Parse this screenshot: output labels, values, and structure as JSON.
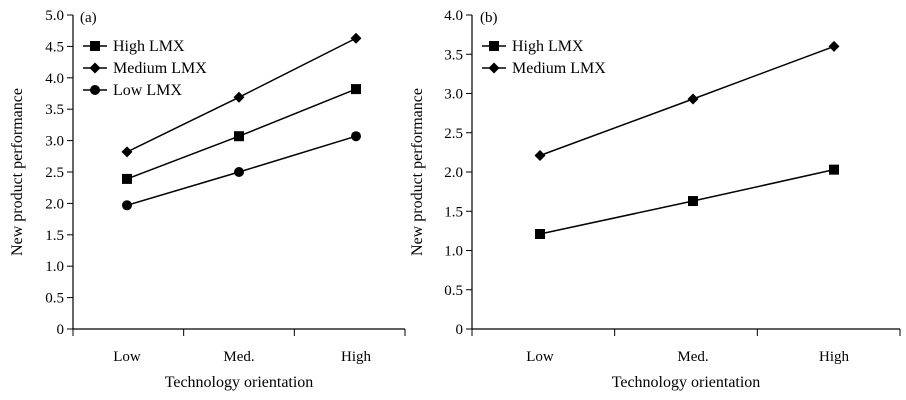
{
  "chart_data": [
    {
      "type": "line",
      "panel_label": "(a)",
      "categories": [
        "Low",
        "Med.",
        "High"
      ],
      "xlabel": "Technology orientation",
      "ylabel": "New product performance",
      "ylim": [
        0,
        5.0
      ],
      "yticks": [
        "0",
        "0.5",
        "1.0",
        "1.5",
        "2.0",
        "2.5",
        "3.0",
        "3.5",
        "4.0",
        "4.5",
        "5.0"
      ],
      "grid": false,
      "legend_position": "top-left",
      "series": [
        {
          "name": "High LMX",
          "marker": "square",
          "values": [
            2.39,
            3.07,
            3.82
          ]
        },
        {
          "name": "Medium LMX",
          "marker": "diamond",
          "values": [
            2.82,
            3.69,
            4.63
          ]
        },
        {
          "name": "Low LMX",
          "marker": "circle",
          "values": [
            1.97,
            2.5,
            3.07
          ]
        }
      ]
    },
    {
      "type": "line",
      "panel_label": "(b)",
      "categories": [
        "Low",
        "Med.",
        "High"
      ],
      "xlabel": "Technology orientation",
      "ylabel": "New product performance",
      "ylim": [
        0,
        4.0
      ],
      "yticks": [
        "0",
        "0.5",
        "1.0",
        "1.5",
        "2.0",
        "2.5",
        "3.0",
        "3.5",
        "4.0"
      ],
      "grid": false,
      "legend_position": "top-left",
      "series": [
        {
          "name": "High LMX",
          "marker": "square",
          "values": [
            1.21,
            1.63,
            2.03
          ]
        },
        {
          "name": "Medium LMX",
          "marker": "diamond",
          "values": [
            2.21,
            2.93,
            3.6
          ]
        }
      ]
    }
  ]
}
